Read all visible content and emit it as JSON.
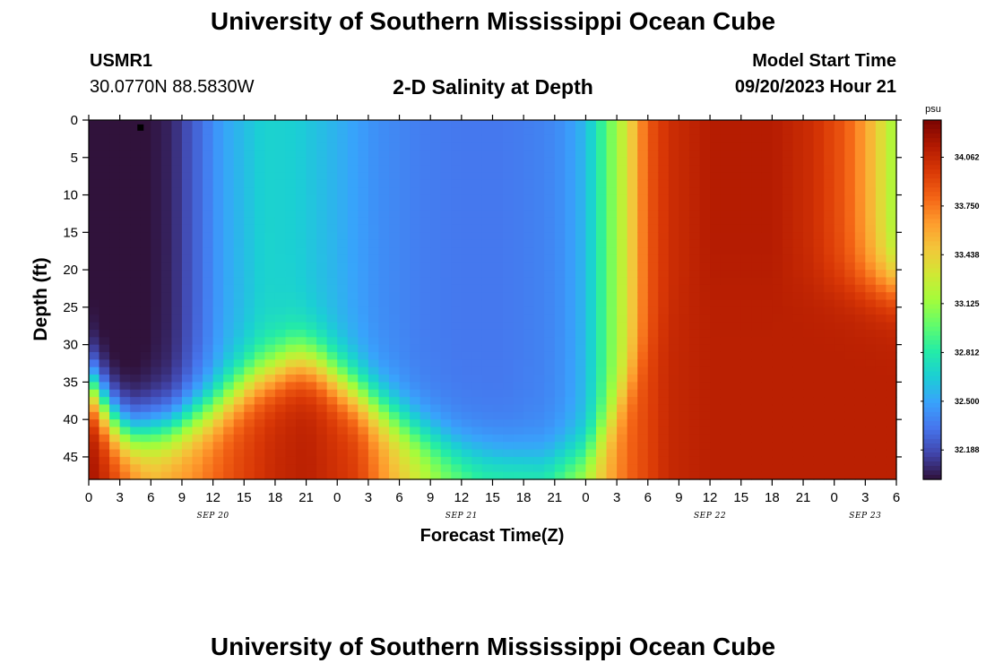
{
  "header": {
    "title": "University of Southern Mississippi Ocean Cube",
    "station_name": "USMR1",
    "station_coords": "30.0770N  88.5830W",
    "plot_title": "2-D Salinity at Depth",
    "model_start_label": "Model Start Time",
    "model_start_value": "09/20/2023 Hour 21"
  },
  "footer": {
    "title": "University of Southern Mississippi Ocean Cube"
  },
  "chart_data": {
    "type": "heatmap",
    "title": "2-D Salinity at Depth",
    "xlabel": "Forecast Time(Z)",
    "ylabel": "Depth (ft)",
    "x_tick_labels": [
      "0",
      "3",
      "6",
      "9",
      "12",
      "15",
      "18",
      "21",
      "0",
      "3",
      "6",
      "9",
      "12",
      "15",
      "18",
      "21",
      "0",
      "3",
      "6",
      "9",
      "12",
      "15",
      "18",
      "21",
      "0",
      "3",
      "6"
    ],
    "day_labels": [
      {
        "label": "SEP 20",
        "hours_from_start": 12
      },
      {
        "label": "SEP 21",
        "hours_from_start": 36
      },
      {
        "label": "SEP 22",
        "hours_from_start": 60
      },
      {
        "label": "SEP 23",
        "hours_from_start": 75
      }
    ],
    "x_range_hours": [
      0,
      78
    ],
    "y_ticks": [
      "0",
      "5",
      "10",
      "15",
      "20",
      "25",
      "30",
      "35",
      "40",
      "45"
    ],
    "y_range_ft": [
      0,
      48
    ],
    "y_inverted": true,
    "colorbar": {
      "unit": "psu",
      "tick_labels": [
        "34.062",
        "33.750",
        "33.438",
        "33.125",
        "32.812",
        "32.500",
        "32.188"
      ],
      "range": [
        32.0,
        34.3
      ],
      "colormap": [
        "#30123b",
        "#4145ab",
        "#4675ed",
        "#39a2fc",
        "#1bcfd4",
        "#24eca6",
        "#61fc6c",
        "#a4fc3b",
        "#d1e834",
        "#f3c63a",
        "#fe9b2d",
        "#f36315",
        "#d93806",
        "#b11901",
        "#7a0402"
      ]
    },
    "salinity_model": {
      "description_keys": "surface salinity by hour and bottom layer salinity by hour, depth interface by hour",
      "surface_hours": [
        0,
        3,
        5,
        8,
        11,
        13,
        17,
        20,
        24,
        28,
        32,
        36,
        40,
        44,
        46,
        48,
        50,
        51,
        52,
        53,
        54,
        56,
        60,
        66,
        70,
        73,
        75,
        77,
        78
      ],
      "surface_psu": [
        32.0,
        31.96,
        31.98,
        32.06,
        32.32,
        32.5,
        32.68,
        32.66,
        32.55,
        32.42,
        32.36,
        32.34,
        32.34,
        32.38,
        32.44,
        32.58,
        32.95,
        33.15,
        33.35,
        33.6,
        33.85,
        34.02,
        34.12,
        34.12,
        34.02,
        33.85,
        33.62,
        33.3,
        33.12
      ],
      "interface_hours": [
        0,
        1,
        2,
        4,
        8,
        12,
        16,
        20,
        22,
        24,
        28,
        32,
        36,
        40,
        44,
        48,
        50,
        52,
        54,
        56,
        60,
        78
      ],
      "interface_ft": [
        35.5,
        37.0,
        39.5,
        42.0,
        41.2,
        38.5,
        34.5,
        32.0,
        32.5,
        34.5,
        38.5,
        42.0,
        44.5,
        45.5,
        46.0,
        45.0,
        41.0,
        36.0,
        31.0,
        27.0,
        22.0,
        22.0
      ],
      "bottom_hours": [
        0,
        1,
        3,
        6,
        10,
        14,
        18,
        21,
        26,
        30,
        34,
        38,
        44,
        48,
        52,
        56,
        60,
        78
      ],
      "bottom_psu": [
        34.2,
        34.1,
        33.9,
        33.6,
        33.7,
        33.9,
        34.05,
        34.1,
        33.95,
        33.5,
        33.15,
        32.95,
        32.95,
        33.3,
        33.8,
        34.05,
        34.1,
        34.1
      ]
    },
    "marker": {
      "hours": 5,
      "depth_ft": 1
    }
  }
}
